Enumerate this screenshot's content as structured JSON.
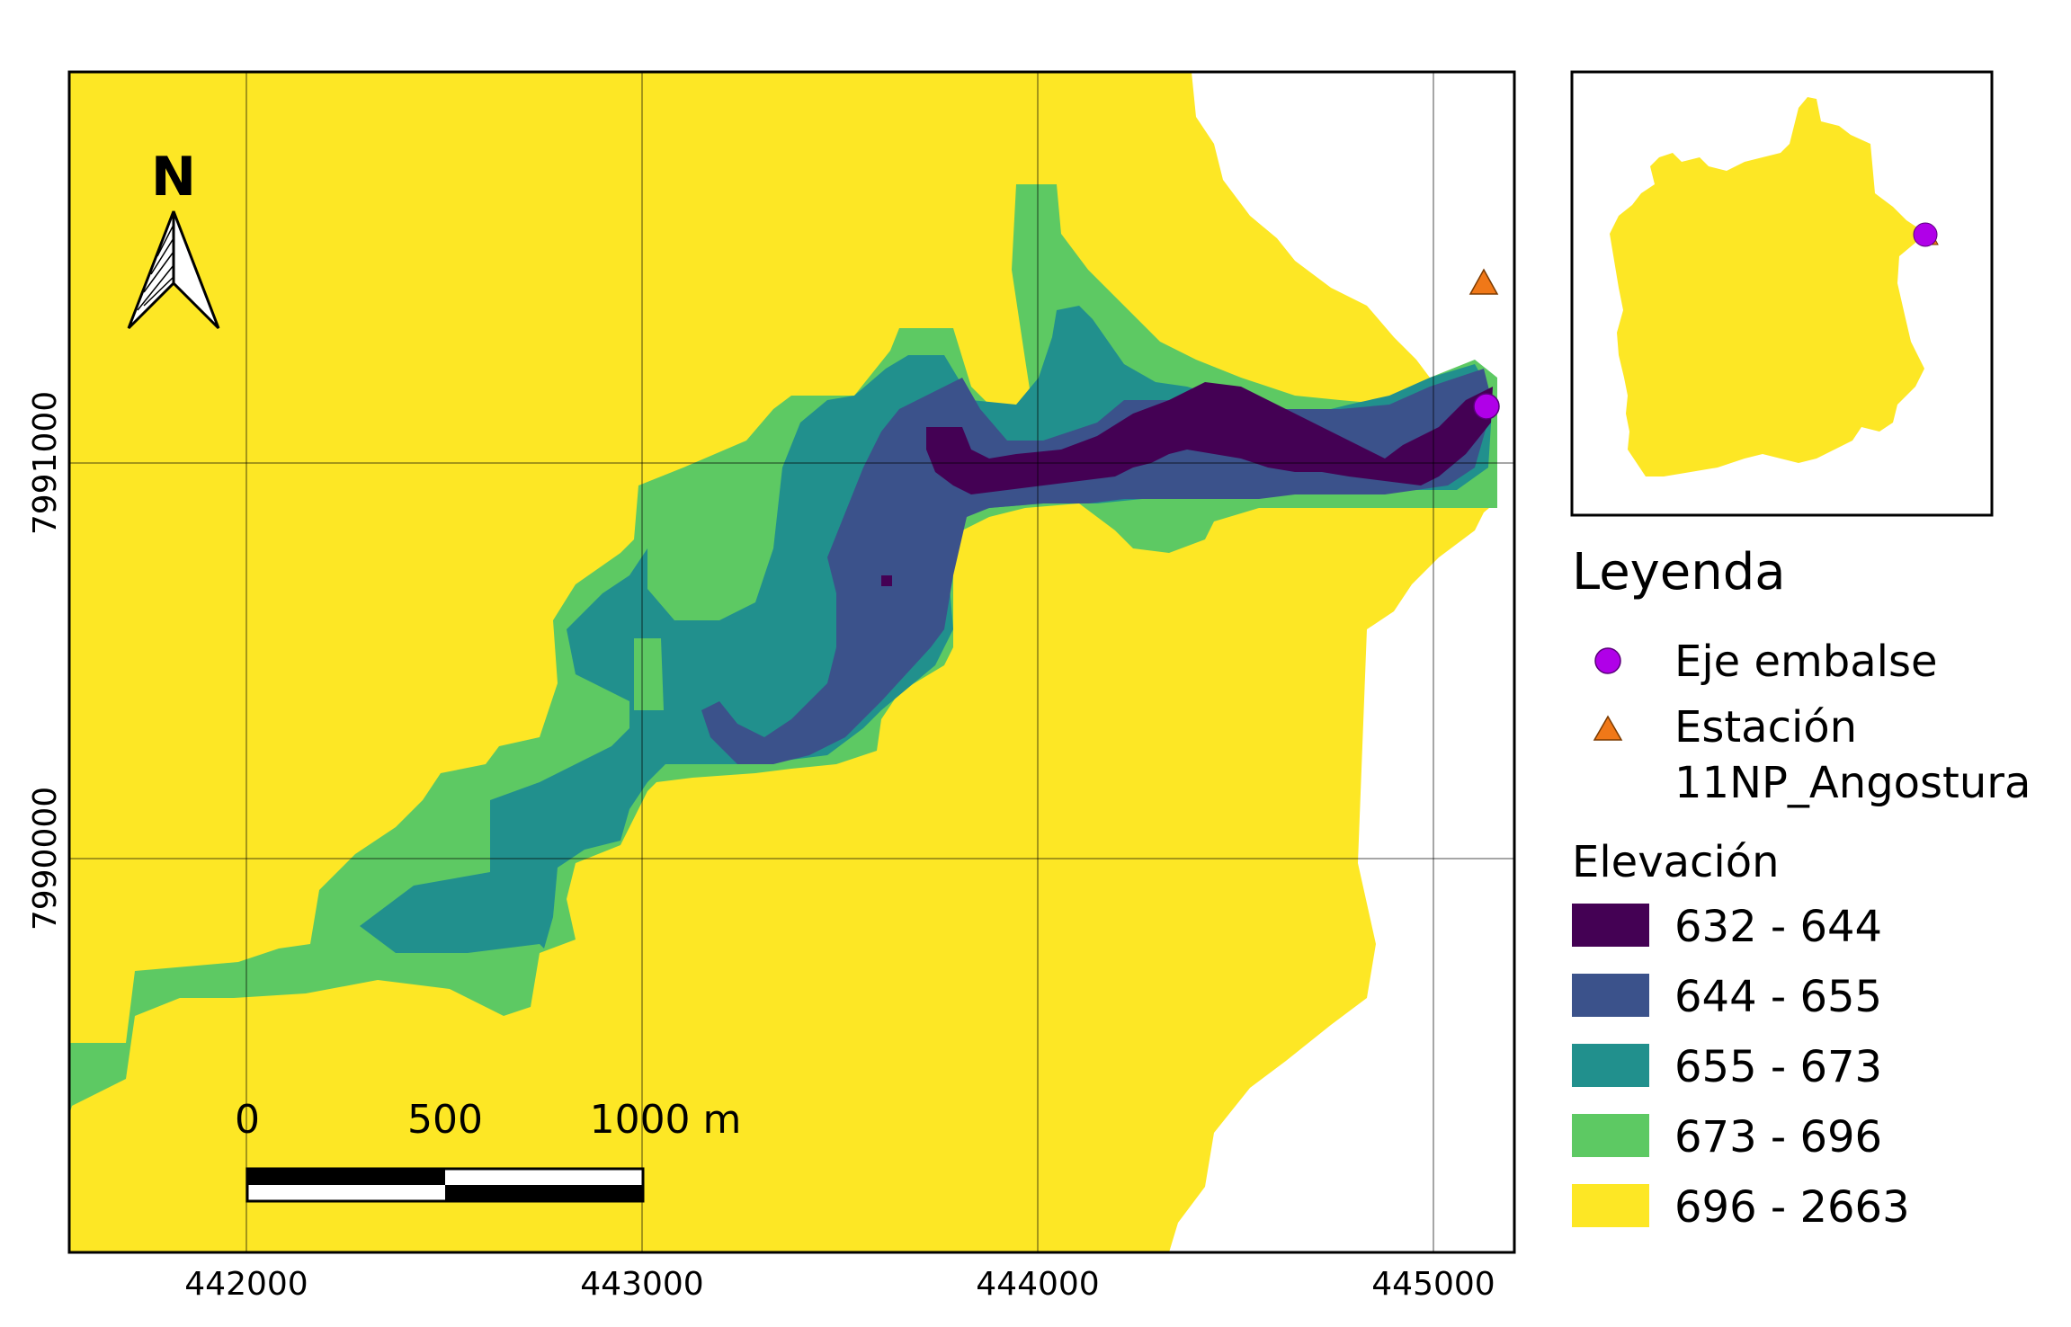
{
  "main_map": {
    "x_ticks": [
      "442000",
      "443000",
      "444000",
      "445000"
    ],
    "y_ticks": [
      "7990000",
      "7991000"
    ]
  },
  "north_arrow": {
    "label": "N"
  },
  "scale_bar": {
    "labels": [
      "0",
      "500",
      "1000 m"
    ]
  },
  "legend": {
    "title": "Leyenda",
    "points": [
      {
        "label": "Eje embalse",
        "symbol": "circle",
        "color": "#b000e8"
      },
      {
        "label_line1": "Estación",
        "label_line2": "11NP_Angostura",
        "symbol": "triangle",
        "color": "#f07818"
      }
    ],
    "elevation_title": "Elevación",
    "classes": [
      {
        "label": "632 - 644",
        "color": "#440154"
      },
      {
        "label": "644 - 655",
        "color": "#3b528b"
      },
      {
        "label": "655 - 673",
        "color": "#21908d"
      },
      {
        "label": "673 - 696",
        "color": "#5dc963"
      },
      {
        "label": "696 - 2663",
        "color": "#fde725"
      }
    ]
  }
}
